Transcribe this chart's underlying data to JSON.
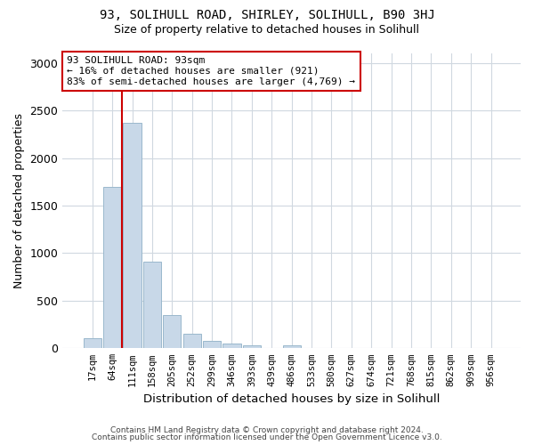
{
  "title1": "93, SOLIHULL ROAD, SHIRLEY, SOLIHULL, B90 3HJ",
  "title2": "Size of property relative to detached houses in Solihull",
  "xlabel": "Distribution of detached houses by size in Solihull",
  "ylabel": "Number of detached properties",
  "bin_labels": [
    "17sqm",
    "64sqm",
    "111sqm",
    "158sqm",
    "205sqm",
    "252sqm",
    "299sqm",
    "346sqm",
    "393sqm",
    "439sqm",
    "486sqm",
    "533sqm",
    "580sqm",
    "627sqm",
    "674sqm",
    "721sqm",
    "768sqm",
    "815sqm",
    "862sqm",
    "909sqm",
    "956sqm"
  ],
  "bar_values": [
    110,
    1700,
    2370,
    910,
    350,
    150,
    75,
    50,
    30,
    0,
    30,
    0,
    0,
    0,
    0,
    0,
    0,
    0,
    0,
    0,
    0
  ],
  "bar_color": "#c8d8e8",
  "bar_edgecolor": "#9ab8cc",
  "property_line_x": 1.5,
  "annotation_title": "93 SOLIHULL ROAD: 93sqm",
  "annotation_line1": "← 16% of detached houses are smaller (921)",
  "annotation_line2": "83% of semi-detached houses are larger (4,769) →",
  "annotation_box_facecolor": "#ffffff",
  "annotation_box_edgecolor": "#cc0000",
  "vline_color": "#cc0000",
  "ylim": [
    0,
    3100
  ],
  "yticks": [
    0,
    500,
    1000,
    1500,
    2000,
    2500,
    3000
  ],
  "footer1": "Contains HM Land Registry data © Crown copyright and database right 2024.",
  "footer2": "Contains public sector information licensed under the Open Government Licence v3.0.",
  "bg_color": "#ffffff",
  "plot_bg_color": "#ffffff",
  "grid_color": "#d0d8e0"
}
